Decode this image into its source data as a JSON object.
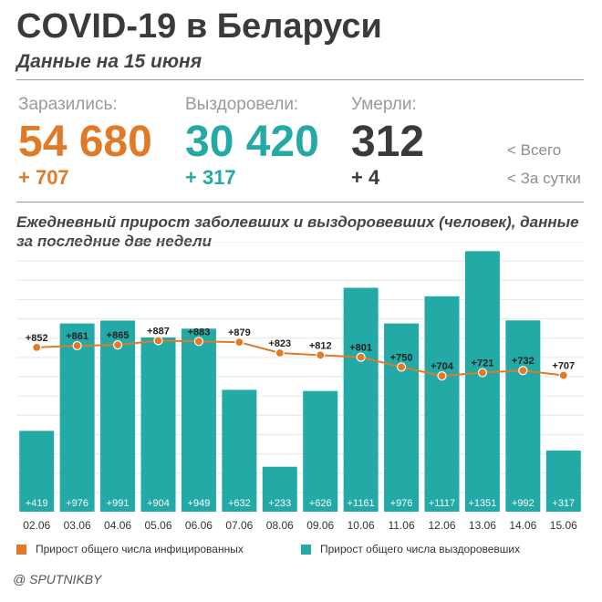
{
  "header": {
    "title": "COVID-19 в Беларуси",
    "subtitle": "Данные на 15 июня"
  },
  "stats": [
    {
      "label": "Заразились:",
      "total": "54 680",
      "delta": "+ 707",
      "color": "#e07a26"
    },
    {
      "label": "Выздоровели:",
      "total": "30 420",
      "delta": "+ 317",
      "color": "#23a9a6"
    },
    {
      "label": "Умерли:",
      "total": "312",
      "delta": "+ 4",
      "color": "#3a3a3a"
    }
  ],
  "side_legend": {
    "total": "<  Всего",
    "daily": "<  За сутки"
  },
  "chart_data": {
    "type": "bar",
    "title": "Ежедневный прирост заболевших и выздоровевших (человек), данные за последние две недели",
    "categories": [
      "02.06",
      "03.06",
      "04.06",
      "05.06",
      "06.06",
      "07.06",
      "08.06",
      "09.06",
      "10.06",
      "11.06",
      "12.06",
      "13.06",
      "14.06",
      "15.06"
    ],
    "series": [
      {
        "name": "Прирост общего числа выздоровевших",
        "kind": "bar",
        "color": "#23a9a6",
        "values": [
          419,
          976,
          991,
          904,
          949,
          632,
          233,
          626,
          1161,
          976,
          1117,
          1351,
          992,
          317
        ],
        "labels": [
          "+419",
          "+976",
          "+991",
          "+904",
          "+949",
          "+632",
          "+233",
          "+626",
          "+1161",
          "+976",
          "+1117",
          "+1351",
          "+992",
          "+317"
        ]
      },
      {
        "name": "Прирост общего числа инфицированных",
        "kind": "line",
        "color": "#e07a26",
        "values": [
          852,
          861,
          865,
          887,
          883,
          879,
          823,
          812,
          801,
          750,
          704,
          721,
          732,
          707
        ],
        "labels": [
          "+852",
          "+861",
          "+865",
          "+887",
          "+883",
          "+879",
          "+823",
          "+812",
          "+801",
          "+750",
          "+704",
          "+721",
          "+732",
          "+707"
        ]
      }
    ],
    "ylim": [
      0,
      1400
    ],
    "grid": true
  },
  "legend": {
    "infected": "Прирост общего числа инфицированных",
    "recovered": "Прирост общего числа выздоровевших"
  },
  "source": "@ SPUTNIKBY"
}
